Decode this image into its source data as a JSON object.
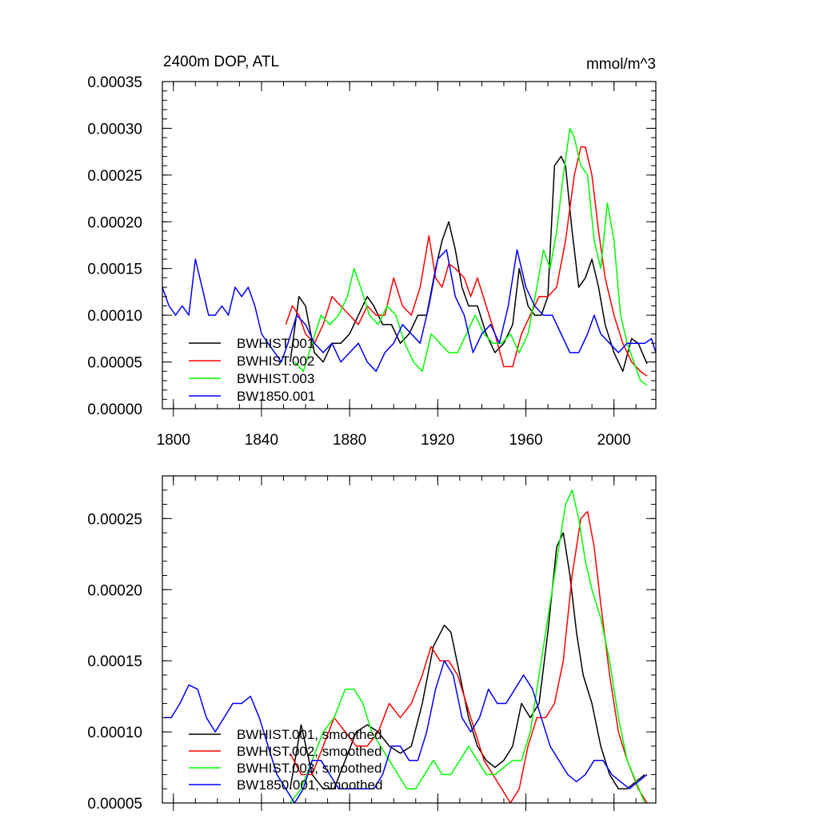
{
  "chart_data": [
    {
      "type": "line",
      "title_left": "2400m DOP, ATL",
      "title_right": "mmol/m^3",
      "xlim": [
        1795,
        2019
      ],
      "ylim": [
        0,
        0.00035
      ],
      "x_ticks": [
        1800,
        1840,
        1880,
        1920,
        1960,
        2000
      ],
      "y_ticks": [
        0,
        5e-05,
        0.0001,
        0.00015,
        0.0002,
        0.00025,
        0.0003,
        0.00035
      ],
      "y_tick_labels": [
        "0.00000",
        "0.00005",
        "0.00010",
        "0.00015",
        "0.00020",
        "0.00025",
        "0.00030",
        "0.00035"
      ],
      "show_x_labels": true,
      "series": [
        {
          "name": "BWHIST.001",
          "color": "#000000",
          "x": [
            1853,
            1857,
            1860,
            1864,
            1868,
            1872,
            1876,
            1880,
            1884,
            1888,
            1891,
            1895,
            1899,
            1903,
            1907,
            1911,
            1915,
            1919,
            1922,
            1925,
            1928,
            1931,
            1934,
            1938,
            1942,
            1946,
            1950,
            1954,
            1957,
            1961,
            1964,
            1967,
            1970,
            1973,
            1976,
            1978,
            1981,
            1984,
            1987,
            1990,
            1993,
            1996,
            2000,
            2004,
            2008,
            2011,
            2015
          ],
          "y": [
            5e-05,
            0.00012,
            0.00011,
            6e-05,
            5e-05,
            7e-05,
            7e-05,
            8e-05,
            0.0001,
            0.00012,
            0.00011,
            9e-05,
            9e-05,
            7e-05,
            8e-05,
            0.0001,
            0.0001,
            0.00015,
            0.00018,
            0.0002,
            0.00017,
            0.00013,
            0.00011,
            0.00011,
            8e-05,
            6e-05,
            7e-05,
            9e-05,
            0.00015,
            0.00011,
            0.0001,
            0.0001,
            0.00012,
            0.00026,
            0.00027,
            0.00026,
            0.00019,
            0.00013,
            0.00014,
            0.00016,
            0.00013,
            9e-05,
            6e-05,
            4e-05,
            7.5e-05,
            7e-05,
            4.8e-05
          ]
        },
        {
          "name": "BWHIST.002",
          "color": "#ff0000",
          "x": [
            1851,
            1854,
            1857,
            1860,
            1864,
            1868,
            1872,
            1876,
            1880,
            1884,
            1888,
            1892,
            1896,
            1900,
            1904,
            1908,
            1912,
            1916,
            1919,
            1922,
            1925,
            1928,
            1932,
            1935,
            1938,
            1942,
            1946,
            1950,
            1954,
            1958,
            1962,
            1966,
            1970,
            1974,
            1978,
            1982,
            1985,
            1987,
            1990,
            1993,
            1996,
            2000,
            2004,
            2008,
            2012,
            2015
          ],
          "y": [
            9e-05,
            0.00011,
            0.0001,
            8e-05,
            7e-05,
            9e-05,
            0.00012,
            0.00011,
            0.0001,
            9e-05,
            0.00011,
            0.0001,
            0.0001,
            0.00014,
            0.00011,
            0.0001,
            0.00013,
            0.000185,
            0.00014,
            0.00013,
            0.000155,
            0.00015,
            0.00014,
            0.00012,
            0.00014,
            0.00011,
            8e-05,
            4.5e-05,
            4.5e-05,
            8e-05,
            0.0001,
            0.00012,
            0.00012,
            0.00013,
            0.00018,
            0.00025,
            0.00028,
            0.00028,
            0.00025,
            0.00019,
            0.00014,
            0.0001,
            7e-05,
            5e-05,
            4e-05,
            3.5e-05
          ]
        },
        {
          "name": "BWHIST.003",
          "color": "#00ff00",
          "x": [
            1855,
            1859,
            1863,
            1867,
            1871,
            1875,
            1879,
            1882,
            1885,
            1889,
            1893,
            1897,
            1901,
            1905,
            1909,
            1913,
            1917,
            1921,
            1925,
            1929,
            1933,
            1937,
            1941,
            1945,
            1949,
            1953,
            1957,
            1961,
            1965,
            1968,
            1971,
            1974,
            1977,
            1980,
            1982,
            1985,
            1988,
            1991,
            1994,
            1997,
            2000,
            2003,
            2006,
            2009,
            2012,
            2015
          ],
          "y": [
            5e-05,
            4e-05,
            7e-05,
            0.0001,
            9e-05,
            0.0001,
            0.00012,
            0.00015,
            0.00013,
            0.0001,
            9e-05,
            0.00011,
            0.0001,
            7e-05,
            5e-05,
            4e-05,
            8e-05,
            7e-05,
            6e-05,
            6e-05,
            8e-05,
            0.0001,
            8e-05,
            7e-05,
            7e-05,
            8e-05,
            6e-05,
            8e-05,
            0.00013,
            0.00017,
            0.00015,
            0.00019,
            0.00025,
            0.0003,
            0.00029,
            0.00026,
            0.00025,
            0.00018,
            0.00015,
            0.00022,
            0.00018,
            0.0001,
            7e-05,
            5e-05,
            3e-05,
            2.5e-05
          ]
        },
        {
          "name": "BW1850.001",
          "color": "#0000ff",
          "x": [
            1795,
            1798,
            1801,
            1804,
            1807,
            1810,
            1813,
            1816,
            1819,
            1822,
            1825,
            1828,
            1831,
            1834,
            1837,
            1840,
            1843,
            1846,
            1849,
            1852,
            1856,
            1860,
            1864,
            1868,
            1872,
            1876,
            1880,
            1884,
            1888,
            1892,
            1896,
            1900,
            1904,
            1908,
            1912,
            1916,
            1920,
            1924,
            1928,
            1932,
            1936,
            1940,
            1944,
            1948,
            1952,
            1956,
            1960,
            1964,
            1968,
            1972,
            1976,
            1980,
            1984,
            1988,
            1991,
            1994,
            1998,
            2002,
            2006,
            2010,
            2014,
            2017,
            2019
          ],
          "y": [
            0.00013,
            0.00011,
            0.0001,
            0.00011,
            0.0001,
            0.00016,
            0.00013,
            0.0001,
            0.0001,
            0.00011,
            0.0001,
            0.00013,
            0.00012,
            0.00013,
            0.00011,
            8e-05,
            7e-05,
            6e-05,
            5e-05,
            7e-05,
            0.0001,
            9e-05,
            7e-05,
            6e-05,
            7e-05,
            5e-05,
            6e-05,
            7e-05,
            5e-05,
            4e-05,
            6e-05,
            7e-05,
            9e-05,
            8e-05,
            7e-05,
            0.00011,
            0.00016,
            0.00017,
            0.00012,
            0.0001,
            6e-05,
            8e-05,
            9e-05,
            7e-05,
            0.00011,
            0.00017,
            0.00013,
            0.00011,
            0.0001,
            0.0001,
            8e-05,
            6e-05,
            6e-05,
            8e-05,
            0.0001,
            8e-05,
            7e-05,
            6e-05,
            7e-05,
            7e-05,
            7e-05,
            7.5e-05,
            6e-05
          ]
        }
      ]
    },
    {
      "type": "line",
      "xlim": [
        1795,
        2019
      ],
      "ylim": [
        5e-05,
        0.00028
      ],
      "x_ticks": [
        1800,
        1840,
        1880,
        1920,
        1960,
        2000
      ],
      "y_ticks": [
        5e-05,
        0.0001,
        0.00015,
        0.0002,
        0.00025
      ],
      "y_tick_labels": [
        "0.00005",
        "0.00010",
        "0.00015",
        "0.00020",
        "0.00025"
      ],
      "show_x_labels": false,
      "series": [
        {
          "name": "BWHIST.001, smoothed",
          "color": "#000000",
          "x": [
            1853,
            1858,
            1863,
            1868,
            1873,
            1878,
            1883,
            1888,
            1893,
            1898,
            1903,
            1908,
            1913,
            1918,
            1923,
            1926,
            1930,
            1934,
            1938,
            1942,
            1946,
            1950,
            1954,
            1958,
            1962,
            1966,
            1970,
            1974,
            1977,
            1980,
            1983,
            1986,
            1990,
            1994,
            1998,
            2002,
            2006,
            2010,
            2014
          ],
          "y": [
            6e-05,
            0.000105,
            7e-05,
            6e-05,
            6e-05,
            8e-05,
            0.0001,
            0.000105,
            0.0001,
            9e-05,
            8.5e-05,
            9e-05,
            0.00012,
            0.00016,
            0.000175,
            0.00017,
            0.00014,
            0.00011,
            9e-05,
            8e-05,
            7.5e-05,
            8e-05,
            9e-05,
            0.00012,
            0.00011,
            0.00012,
            0.00017,
            0.00023,
            0.00024,
            0.00021,
            0.00017,
            0.00014,
            0.00012,
            9e-05,
            7e-05,
            6e-05,
            6e-05,
            6.5e-05,
            7e-05
          ]
        },
        {
          "name": "BWHIST.002, smoothed",
          "color": "#ff0000",
          "x": [
            1853,
            1858,
            1863,
            1868,
            1873,
            1878,
            1883,
            1888,
            1893,
            1898,
            1903,
            1908,
            1913,
            1917,
            1921,
            1925,
            1929,
            1933,
            1937,
            1941,
            1945,
            1949,
            1953,
            1957,
            1961,
            1965,
            1969,
            1973,
            1977,
            1981,
            1985,
            1988,
            1991,
            1994,
            1998,
            2002,
            2006,
            2011,
            2015
          ],
          "y": [
            8.5e-05,
            7e-05,
            7e-05,
            9e-05,
            0.00011,
            0.0001,
            9e-05,
            9e-05,
            0.0001,
            0.00012,
            0.00011,
            0.00012,
            0.00014,
            0.00016,
            0.00015,
            0.00015,
            0.00014,
            0.00012,
            0.0001,
            8e-05,
            7e-05,
            6e-05,
            5e-05,
            6e-05,
            9e-05,
            0.00011,
            0.00011,
            0.00012,
            0.00015,
            0.00021,
            0.00025,
            0.000255,
            0.00023,
            0.00019,
            0.00014,
            0.0001,
            8e-05,
            6e-05,
            5e-05
          ]
        },
        {
          "name": "BWHIST.003, smoothed",
          "color": "#00ff00",
          "x": [
            1853,
            1858,
            1863,
            1868,
            1873,
            1878,
            1882,
            1886,
            1890,
            1894,
            1898,
            1902,
            1906,
            1910,
            1914,
            1918,
            1922,
            1926,
            1930,
            1934,
            1938,
            1942,
            1946,
            1950,
            1954,
            1958,
            1962,
            1966,
            1970,
            1974,
            1978,
            1981,
            1984,
            1987,
            1990,
            1994,
            1998,
            2002,
            2006,
            2010,
            2014
          ],
          "y": [
            5e-05,
            6e-05,
            8e-05,
            0.0001,
            0.00011,
            0.00013,
            0.00013,
            0.00012,
            0.0001,
            9e-05,
            8e-05,
            7e-05,
            6e-05,
            6e-05,
            7e-05,
            8e-05,
            7e-05,
            7e-05,
            8e-05,
            9e-05,
            8e-05,
            7e-05,
            7e-05,
            7.5e-05,
            8e-05,
            8e-05,
            0.0001,
            0.00014,
            0.00018,
            0.00022,
            0.00026,
            0.00027,
            0.00025,
            0.00022,
            0.0002,
            0.00018,
            0.00015,
            0.00011,
            8e-05,
            6.5e-05,
            5e-05
          ]
        },
        {
          "name": "BW1850.001, smoothed",
          "color": "#0000ff",
          "x": [
            1796,
            1799,
            1803,
            1807,
            1811,
            1815,
            1819,
            1823,
            1827,
            1831,
            1835,
            1839,
            1843,
            1847,
            1851,
            1855,
            1859,
            1863,
            1867,
            1871,
            1875,
            1879,
            1883,
            1887,
            1891,
            1895,
            1899,
            1903,
            1907,
            1911,
            1915,
            1919,
            1923,
            1927,
            1931,
            1935,
            1939,
            1943,
            1947,
            1951,
            1955,
            1959,
            1963,
            1967,
            1971,
            1975,
            1979,
            1983,
            1987,
            1991,
            1995,
            1999,
            2003,
            2007,
            2011,
            2015
          ],
          "y": [
            0.00011,
            0.00011,
            0.00012,
            0.000133,
            0.00013,
            0.00011,
            0.0001,
            0.00011,
            0.00012,
            0.00012,
            0.000125,
            0.00011,
            9e-05,
            7e-05,
            6e-05,
            5e-05,
            6e-05,
            8e-05,
            8e-05,
            7e-05,
            6e-05,
            6e-05,
            6e-05,
            6e-05,
            6e-05,
            7e-05,
            9e-05,
            9e-05,
            8e-05,
            8e-05,
            0.0001,
            0.00013,
            0.00015,
            0.00014,
            0.00011,
            0.0001,
            0.00011,
            0.00013,
            0.00012,
            0.00012,
            0.00013,
            0.00014,
            0.00013,
            0.00011,
            9e-05,
            8e-05,
            7e-05,
            6.5e-05,
            7e-05,
            8e-05,
            8e-05,
            7e-05,
            6.5e-05,
            6e-05,
            6.5e-05,
            7e-05
          ]
        }
      ]
    }
  ]
}
